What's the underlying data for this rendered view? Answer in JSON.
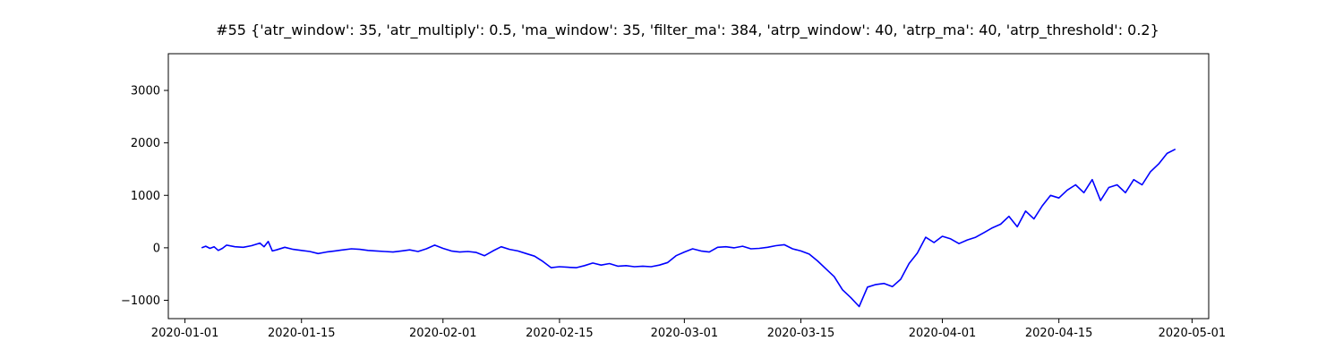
{
  "chart_data": {
    "type": "line",
    "title": "#55 {'atr_window': 35, 'atr_multiply': 0.5, 'ma_window': 35, 'filter_ma': 384, 'atrp_window': 40, 'atrp_ma': 40, 'atrp_threshold': 0.2}",
    "xlabel": "",
    "ylabel": "",
    "x_type": "date",
    "xlim": [
      "2019-12-30",
      "2020-05-03"
    ],
    "ylim": [
      -1350,
      3700
    ],
    "x_ticks": [
      "2020-01-01",
      "2020-01-15",
      "2020-02-01",
      "2020-02-15",
      "2020-03-01",
      "2020-03-15",
      "2020-04-01",
      "2020-04-15",
      "2020-05-01"
    ],
    "y_ticks": [
      -1000,
      0,
      1000,
      2000,
      3000
    ],
    "y_tick_labels": [
      "−1000",
      "0",
      "1000",
      "2000",
      "3000"
    ],
    "grid": false,
    "legend": false,
    "series": [
      {
        "color": "#0000ff",
        "points": [
          [
            "2020-01-03",
            0
          ],
          [
            "2020-01-03 12:00",
            30
          ],
          [
            "2020-01-04",
            -10
          ],
          [
            "2020-01-04 12:00",
            20
          ],
          [
            "2020-01-05",
            -50
          ],
          [
            "2020-01-05 12:00",
            -10
          ],
          [
            "2020-01-06",
            50
          ],
          [
            "2020-01-07",
            20
          ],
          [
            "2020-01-08",
            10
          ],
          [
            "2020-01-09",
            40
          ],
          [
            "2020-01-10",
            90
          ],
          [
            "2020-01-10 12:00",
            20
          ],
          [
            "2020-01-11",
            120
          ],
          [
            "2020-01-11 12:00",
            -60
          ],
          [
            "2020-01-12",
            -40
          ],
          [
            "2020-01-13",
            10
          ],
          [
            "2020-01-14",
            -30
          ],
          [
            "2020-01-15",
            -50
          ],
          [
            "2020-01-16",
            -70
          ],
          [
            "2020-01-17",
            -110
          ],
          [
            "2020-01-18",
            -80
          ],
          [
            "2020-01-19",
            -60
          ],
          [
            "2020-01-20",
            -40
          ],
          [
            "2020-01-21",
            -20
          ],
          [
            "2020-01-22",
            -30
          ],
          [
            "2020-01-23",
            -50
          ],
          [
            "2020-01-24",
            -60
          ],
          [
            "2020-01-25",
            -70
          ],
          [
            "2020-01-26",
            -80
          ],
          [
            "2020-01-27",
            -60
          ],
          [
            "2020-01-28",
            -40
          ],
          [
            "2020-01-29",
            -70
          ],
          [
            "2020-01-30",
            -20
          ],
          [
            "2020-01-31",
            50
          ],
          [
            "2020-02-01",
            -10
          ],
          [
            "2020-02-02",
            -60
          ],
          [
            "2020-02-03",
            -80
          ],
          [
            "2020-02-04",
            -70
          ],
          [
            "2020-02-05",
            -90
          ],
          [
            "2020-02-06",
            -150
          ],
          [
            "2020-02-07",
            -60
          ],
          [
            "2020-02-08",
            20
          ],
          [
            "2020-02-09",
            -30
          ],
          [
            "2020-02-10",
            -60
          ],
          [
            "2020-02-11",
            -110
          ],
          [
            "2020-02-12",
            -160
          ],
          [
            "2020-02-13",
            -260
          ],
          [
            "2020-02-14",
            -380
          ],
          [
            "2020-02-15",
            -360
          ],
          [
            "2020-02-16",
            -370
          ],
          [
            "2020-02-17",
            -380
          ],
          [
            "2020-02-18",
            -340
          ],
          [
            "2020-02-19",
            -290
          ],
          [
            "2020-02-20",
            -330
          ],
          [
            "2020-02-21",
            -300
          ],
          [
            "2020-02-22",
            -350
          ],
          [
            "2020-02-23",
            -340
          ],
          [
            "2020-02-24",
            -360
          ],
          [
            "2020-02-25",
            -350
          ],
          [
            "2020-02-26",
            -360
          ],
          [
            "2020-02-27",
            -330
          ],
          [
            "2020-02-28",
            -280
          ],
          [
            "2020-02-29",
            -150
          ],
          [
            "2020-03-01",
            -80
          ],
          [
            "2020-03-02",
            -20
          ],
          [
            "2020-03-03",
            -60
          ],
          [
            "2020-03-04",
            -80
          ],
          [
            "2020-03-05",
            10
          ],
          [
            "2020-03-06",
            20
          ],
          [
            "2020-03-07",
            0
          ],
          [
            "2020-03-08",
            30
          ],
          [
            "2020-03-09",
            -20
          ],
          [
            "2020-03-10",
            -10
          ],
          [
            "2020-03-11",
            10
          ],
          [
            "2020-03-12",
            40
          ],
          [
            "2020-03-13",
            60
          ],
          [
            "2020-03-14",
            -20
          ],
          [
            "2020-03-15",
            -60
          ],
          [
            "2020-03-16",
            -120
          ],
          [
            "2020-03-17",
            -250
          ],
          [
            "2020-03-18",
            -400
          ],
          [
            "2020-03-19",
            -550
          ],
          [
            "2020-03-20",
            -800
          ],
          [
            "2020-03-21",
            -950
          ],
          [
            "2020-03-22",
            -1120
          ],
          [
            "2020-03-23",
            -750
          ],
          [
            "2020-03-24",
            -700
          ],
          [
            "2020-03-25",
            -680
          ],
          [
            "2020-03-26",
            -740
          ],
          [
            "2020-03-27",
            -600
          ],
          [
            "2020-03-28",
            -300
          ],
          [
            "2020-03-29",
            -100
          ],
          [
            "2020-03-30",
            200
          ],
          [
            "2020-03-31",
            100
          ],
          [
            "2020-04-01",
            220
          ],
          [
            "2020-04-02",
            170
          ],
          [
            "2020-04-03",
            80
          ],
          [
            "2020-04-04",
            150
          ],
          [
            "2020-04-05",
            200
          ],
          [
            "2020-04-06",
            290
          ],
          [
            "2020-04-07",
            380
          ],
          [
            "2020-04-08",
            450
          ],
          [
            "2020-04-09",
            600
          ],
          [
            "2020-04-10",
            400
          ],
          [
            "2020-04-11",
            700
          ],
          [
            "2020-04-12",
            550
          ],
          [
            "2020-04-13",
            800
          ],
          [
            "2020-04-14",
            1000
          ],
          [
            "2020-04-15",
            950
          ],
          [
            "2020-04-16",
            1100
          ],
          [
            "2020-04-17",
            1200
          ],
          [
            "2020-04-18",
            1050
          ],
          [
            "2020-04-19",
            1300
          ],
          [
            "2020-04-20",
            900
          ],
          [
            "2020-04-21",
            1150
          ],
          [
            "2020-04-22",
            1200
          ],
          [
            "2020-04-23",
            1050
          ],
          [
            "2020-04-24",
            1300
          ],
          [
            "2020-04-25",
            1200
          ],
          [
            "2020-04-26",
            1450
          ],
          [
            "2020-04-27",
            1600
          ],
          [
            "2020-04-28",
            1800
          ],
          [
            "2020-04-29",
            1880
          ]
        ]
      }
    ]
  }
}
